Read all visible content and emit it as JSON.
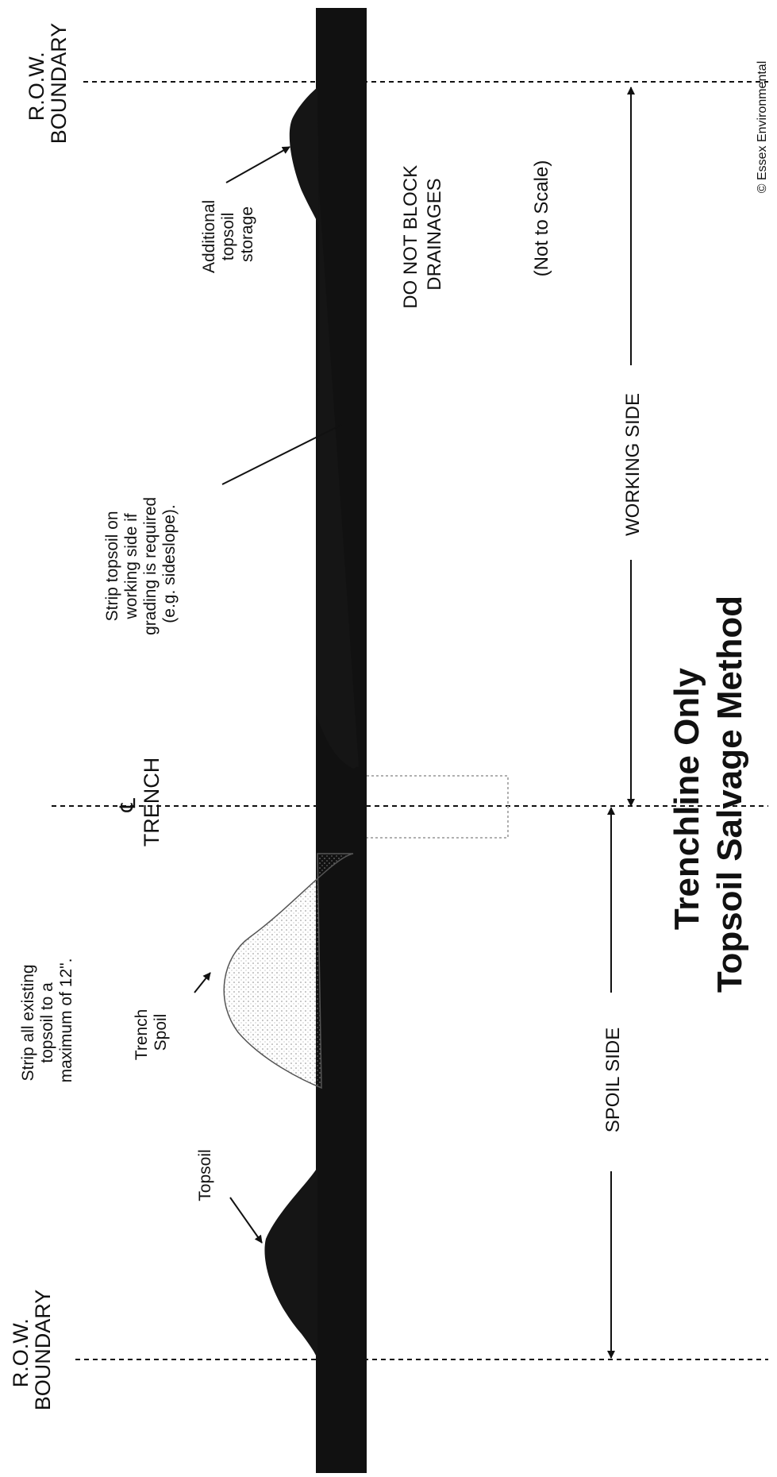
{
  "title": [
    "Trenchline Only",
    "Topsoil Salvage Method"
  ],
  "row_boundary": [
    "R.O.W.",
    "BOUNDARY"
  ],
  "trench_label": [
    "℄",
    "TRENCH"
  ],
  "working_side": "WORKING SIDE",
  "spoil_side": "SPOIL SIDE",
  "drainage_note": [
    "DO NOT BLOCK",
    "DRAINAGES"
  ],
  "scale_note": "(Not to Scale)",
  "copyright": "© Essex Environmental",
  "annotations": {
    "additional_storage": [
      "Additional",
      "topsoil",
      "storage"
    ],
    "strip_working": [
      "Strip topsoil on",
      "working side if",
      "grading is required",
      "(e.g. sideslope)."
    ],
    "strip_all": [
      "Strip all existing",
      "topsoil to a",
      "maximum of 12\"."
    ],
    "trench_spoil": [
      "Trench",
      "Spoil"
    ],
    "topsoil": [
      "Topsoil"
    ]
  },
  "colors": {
    "ink": "#111111",
    "spoil": "#9a9a9a",
    "background": "#ffffff"
  }
}
